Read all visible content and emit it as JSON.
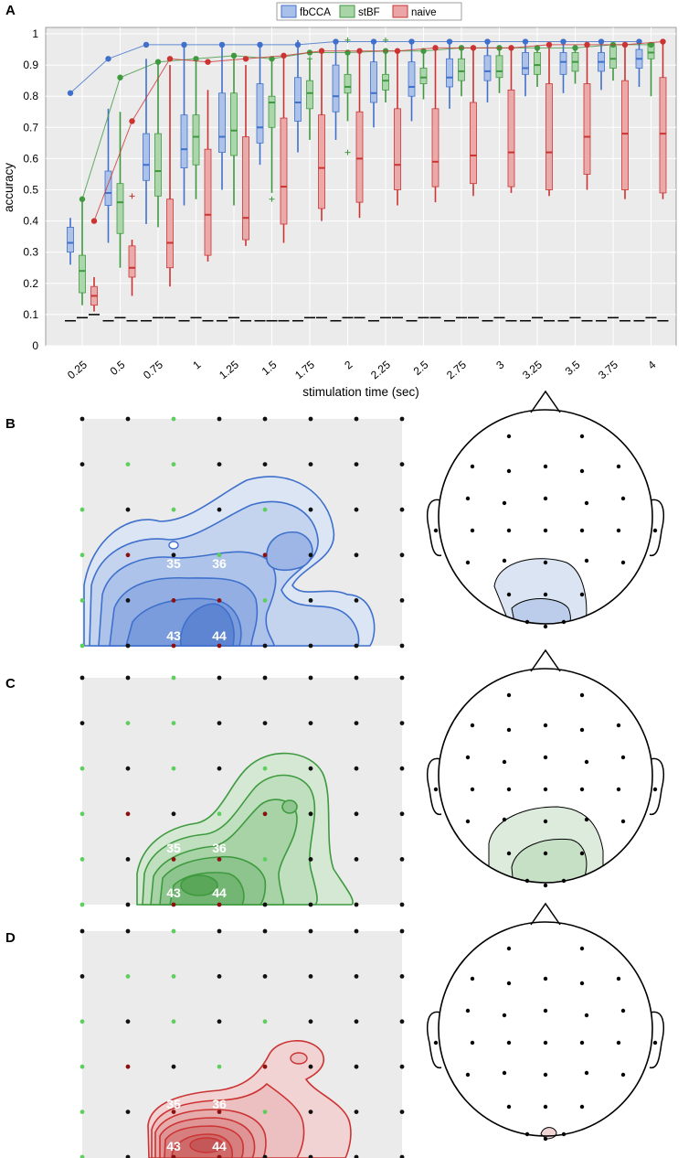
{
  "colors": {
    "fbCCA": "#3f70cc",
    "stBF": "#3f9a3f",
    "naive": "#cc3333",
    "fbCCA_fill": "#a9c0e8",
    "stBF_fill": "#a8d4a8",
    "naive_fill": "#eaa6a6",
    "panel_bg": "#ebebeb"
  },
  "chart_data": [
    {
      "type": "box",
      "panel_label": "A",
      "title": "",
      "xlabel": "stimulation time (sec)",
      "ylabel": "accuracy",
      "ylim": [
        0,
        1
      ],
      "grid": true,
      "yticks": [
        "0",
        "0.1",
        "0.2",
        "0.3",
        "0.4",
        "0.5",
        "0.6",
        "0.7",
        "0.8",
        "0.9",
        "1"
      ],
      "categories": [
        "0.25",
        "0.5",
        "0.75",
        "1",
        "1.25",
        "1.5",
        "1.75",
        "2",
        "2.25",
        "2.5",
        "2.75",
        "3",
        "3.25",
        "3.5",
        "3.75",
        "4"
      ],
      "legend": {
        "position": "top",
        "entries": [
          "fbCCA",
          "stBF",
          "naive"
        ]
      },
      "series": [
        {
          "name": "fbCCA",
          "max_line": [
            0.81,
            0.92,
            0.965,
            0.965,
            0.965,
            0.965,
            0.965,
            0.975,
            0.975,
            0.975,
            0.975,
            0.975,
            0.975,
            0.975,
            0.975,
            0.975
          ],
          "median": [
            0.33,
            0.49,
            0.58,
            0.63,
            0.67,
            0.7,
            0.78,
            0.8,
            0.81,
            0.83,
            0.86,
            0.88,
            0.89,
            0.91,
            0.91,
            0.92
          ],
          "q1": [
            0.3,
            0.45,
            0.53,
            0.57,
            0.62,
            0.65,
            0.72,
            0.75,
            0.78,
            0.8,
            0.83,
            0.85,
            0.87,
            0.87,
            0.88,
            0.89
          ],
          "q3": [
            0.38,
            0.56,
            0.68,
            0.74,
            0.81,
            0.84,
            0.86,
            0.9,
            0.91,
            0.91,
            0.92,
            0.93,
            0.94,
            0.94,
            0.94,
            0.95
          ],
          "whisker_low": [
            0.26,
            0.33,
            0.39,
            0.45,
            0.5,
            0.58,
            0.62,
            0.66,
            0.7,
            0.72,
            0.76,
            0.78,
            0.8,
            0.81,
            0.82,
            0.83
          ],
          "whisker_high": [
            0.41,
            0.76,
            0.92,
            0.96,
            0.97,
            0.97,
            0.98,
            0.98,
            0.98,
            0.98,
            0.98,
            0.98,
            0.98,
            0.98,
            0.98,
            0.98
          ],
          "outliers": [
            [],
            [],
            [],
            [],
            [],
            [],
            [],
            [],
            [],
            [],
            [],
            [],
            [],
            [],
            [],
            []
          ],
          "chance_line": [
            0.08,
            0.08,
            0.08,
            0.08,
            0.08,
            0.08,
            0.08,
            0.08,
            0.08,
            0.08,
            0.08,
            0.08,
            0.08,
            0.08,
            0.08,
            0.08
          ]
        },
        {
          "name": "stBF",
          "max_line": [
            0.47,
            0.86,
            0.91,
            0.92,
            0.93,
            0.92,
            0.94,
            0.94,
            0.945,
            0.945,
            0.955,
            0.955,
            0.955,
            0.955,
            0.965,
            0.965
          ],
          "median": [
            0.24,
            0.46,
            0.56,
            0.67,
            0.69,
            0.78,
            0.81,
            0.83,
            0.85,
            0.86,
            0.88,
            0.88,
            0.9,
            0.91,
            0.92,
            0.94
          ],
          "q1": [
            0.17,
            0.36,
            0.48,
            0.58,
            0.61,
            0.7,
            0.76,
            0.81,
            0.82,
            0.84,
            0.85,
            0.86,
            0.87,
            0.88,
            0.89,
            0.92
          ],
          "q3": [
            0.29,
            0.52,
            0.68,
            0.74,
            0.81,
            0.8,
            0.85,
            0.87,
            0.87,
            0.89,
            0.92,
            0.93,
            0.94,
            0.94,
            0.96,
            0.97
          ],
          "whisker_low": [
            0.13,
            0.25,
            0.38,
            0.47,
            0.45,
            0.49,
            0.66,
            0.72,
            0.78,
            0.79,
            0.8,
            0.81,
            0.83,
            0.84,
            0.85,
            0.8
          ],
          "whisker_high": [
            0.47,
            0.75,
            0.91,
            0.92,
            0.93,
            0.92,
            0.92,
            0.94,
            0.95,
            0.95,
            0.96,
            0.96,
            0.96,
            0.96,
            0.97,
            0.97
          ],
          "outliers": [
            [],
            [],
            [],
            [],
            [],
            [
              0.47
            ],
            [
              0.92
            ],
            [
              0.62,
              0.98
            ],
            [
              0.98
            ],
            [],
            [],
            [],
            [],
            [],
            [],
            []
          ],
          "chance_line": [
            0.09,
            0.09,
            0.09,
            0.09,
            0.09,
            0.08,
            0.09,
            0.09,
            0.09,
            0.09,
            0.09,
            0.09,
            0.09,
            0.09,
            0.09,
            0.09
          ]
        },
        {
          "name": "naive",
          "max_line": [
            0.4,
            0.72,
            0.92,
            0.91,
            0.92,
            0.93,
            0.945,
            0.945,
            0.945,
            0.955,
            0.955,
            0.955,
            0.965,
            0.965,
            0.965,
            0.975
          ],
          "median": [
            0.16,
            0.25,
            0.33,
            0.42,
            0.41,
            0.51,
            0.57,
            0.6,
            0.58,
            0.59,
            0.61,
            0.62,
            0.62,
            0.67,
            0.68,
            0.68
          ],
          "q1": [
            0.13,
            0.22,
            0.25,
            0.29,
            0.34,
            0.39,
            0.44,
            0.46,
            0.5,
            0.51,
            0.52,
            0.51,
            0.5,
            0.55,
            0.5,
            0.49
          ],
          "q3": [
            0.19,
            0.32,
            0.47,
            0.63,
            0.67,
            0.73,
            0.74,
            0.75,
            0.76,
            0.76,
            0.78,
            0.82,
            0.84,
            0.84,
            0.85,
            0.86
          ],
          "whisker_low": [
            0.11,
            0.16,
            0.19,
            0.27,
            0.32,
            0.33,
            0.4,
            0.41,
            0.45,
            0.46,
            0.48,
            0.49,
            0.48,
            0.5,
            0.47,
            0.47
          ],
          "whisker_high": [
            0.22,
            0.34,
            0.9,
            0.82,
            0.9,
            0.93,
            0.95,
            0.95,
            0.95,
            0.96,
            0.96,
            0.96,
            0.97,
            0.97,
            0.97,
            0.98
          ],
          "outliers": [
            [],
            [
              0.48
            ],
            [],
            [],
            [],
            [],
            [],
            [],
            [],
            [],
            [],
            [],
            [],
            [],
            [],
            []
          ],
          "chance_line": [
            0.1,
            0.08,
            0.09,
            0.08,
            0.08,
            0.08,
            0.09,
            0.09,
            0.09,
            0.09,
            0.09,
            0.08,
            0.08,
            0.08,
            0.08,
            0.08
          ]
        }
      ]
    },
    {
      "type": "heatmap",
      "panel_label": "B",
      "method": "fbCCA",
      "electrode_labels": [
        "35",
        "36",
        "43",
        "44"
      ]
    },
    {
      "type": "heatmap",
      "panel_label": "C",
      "method": "stBF",
      "electrode_labels": [
        "35",
        "36",
        "43",
        "44"
      ]
    },
    {
      "type": "heatmap",
      "panel_label": "D",
      "method": "naive",
      "electrode_labels": [
        "35",
        "36",
        "43",
        "44"
      ]
    }
  ]
}
